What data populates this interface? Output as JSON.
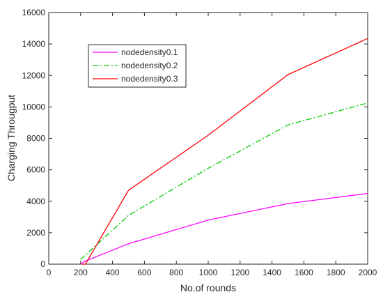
{
  "chart_data": {
    "type": "line",
    "title": "",
    "xlabel": "No.of rounds",
    "ylabel": "Charging Througput",
    "xlim": [
      0,
      2000
    ],
    "ylim": [
      0,
      16000
    ],
    "xticks": [
      0,
      200,
      400,
      600,
      800,
      1000,
      1200,
      1400,
      1600,
      1800,
      2000
    ],
    "yticks": [
      0,
      2000,
      4000,
      6000,
      8000,
      10000,
      12000,
      14000,
      16000
    ],
    "grid": false,
    "legend_position": "top-left",
    "series": [
      {
        "name": "nodedensity0.1",
        "color": "#ff00ff",
        "style": "solid",
        "points": [
          [
            200,
            0
          ],
          [
            230,
            200
          ],
          [
            500,
            1300
          ],
          [
            1000,
            2800
          ],
          [
            1500,
            3850
          ],
          [
            2000,
            4500
          ]
        ]
      },
      {
        "name": "nodedensity0.2",
        "color": "#00cc00",
        "style": "dashdot",
        "points": [
          [
            200,
            300
          ],
          [
            500,
            3100
          ],
          [
            1000,
            6100
          ],
          [
            1500,
            8850
          ],
          [
            2000,
            10250
          ]
        ]
      },
      {
        "name": "nodedensity0.3",
        "color": "#ff0000",
        "style": "solid",
        "points": [
          [
            210,
            0
          ],
          [
            230,
            0
          ],
          [
            500,
            4700
          ],
          [
            1000,
            8200
          ],
          [
            1500,
            12050
          ],
          [
            2000,
            14350
          ]
        ]
      }
    ]
  }
}
